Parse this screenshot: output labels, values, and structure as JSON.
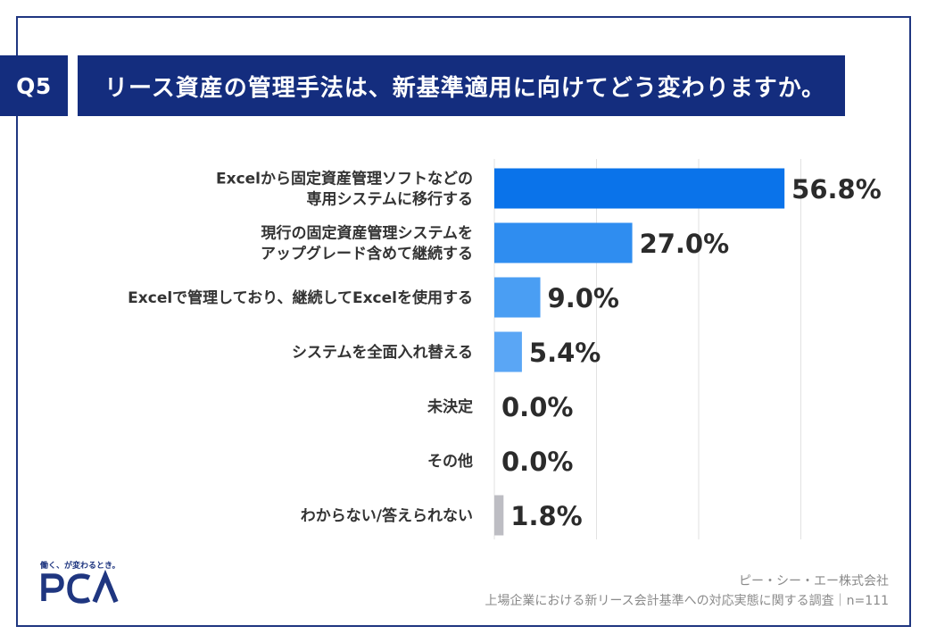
{
  "question": {
    "number": "Q5",
    "title": "リース資産の管理手法は、新基準適用に向けてどう変わりますか。"
  },
  "chart_data": {
    "type": "bar",
    "orientation": "horizontal",
    "categories": [
      [
        "Excelから固定資産管理ソフトなどの",
        "専用システムに移行する"
      ],
      [
        "現行の固定資産管理システムを",
        "アップグレード含めて継続する"
      ],
      [
        "Excelで管理しており、継続してExcelを使用する"
      ],
      [
        "システムを全面入れ替える"
      ],
      [
        "未決定"
      ],
      [
        "その他"
      ],
      [
        "わからない/答えられない"
      ]
    ],
    "values": [
      56.8,
      27.0,
      9.0,
      5.4,
      0.0,
      0.0,
      1.8
    ],
    "value_labels": [
      "56.8%",
      "27.0%",
      "9.0%",
      "5.4%",
      "0.0%",
      "0.0%",
      "1.8%"
    ],
    "colors": [
      "#0a73ea",
      "#2f8df0",
      "#4a9ef3",
      "#5aa6f5",
      "#5aa6f5",
      "#5aa6f5",
      "#bdbdc3"
    ],
    "xlim": [
      0,
      80
    ],
    "grid": true
  },
  "logo": {
    "tagline": "働く、が変わるとき。",
    "name": "PCA"
  },
  "footer": {
    "company": "ピー・シー・エー株式会社",
    "survey": "上場企業における新リース会計基準への対応実態に関する調査｜n=111"
  }
}
